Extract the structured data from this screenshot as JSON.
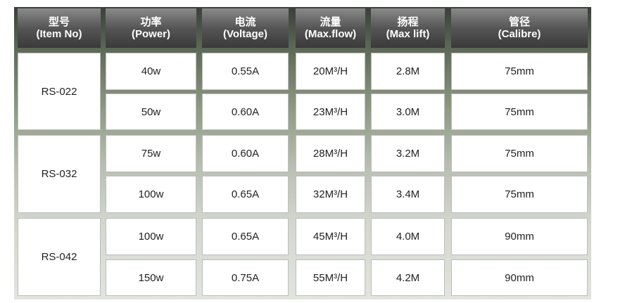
{
  "table": {
    "header": [
      {
        "zh": "型号",
        "en": "(Item No)"
      },
      {
        "zh": "功率",
        "en": "(Power)"
      },
      {
        "zh": "电流",
        "en": "(Voltage)"
      },
      {
        "zh": "流量",
        "en": "(Max.flow)"
      },
      {
        "zh": "扬程",
        "en": "(Max lift)"
      },
      {
        "zh": "管径",
        "en": "(Calibre)"
      }
    ],
    "groups": [
      {
        "model": "RS-022",
        "rows": [
          [
            "40w",
            "0.55A",
            "20M³/H",
            "2.8M",
            "75mm"
          ],
          [
            "50w",
            "0.60A",
            "23M³/H",
            "3.0M",
            "75mm"
          ]
        ]
      },
      {
        "model": "RS-032",
        "rows": [
          [
            "75w",
            "0.60A",
            "28M³/H",
            "3.2M",
            "75mm"
          ],
          [
            "100w",
            "0.65A",
            "32M³/H",
            "3.4M",
            "75mm"
          ]
        ]
      },
      {
        "model": "RS-042",
        "rows": [
          [
            "100w",
            "0.65A",
            "45M³/H",
            "4.0M",
            "90mm"
          ],
          [
            "150w",
            "0.75A",
            "55M³/H",
            "4.2M",
            "90mm"
          ]
        ]
      }
    ]
  }
}
